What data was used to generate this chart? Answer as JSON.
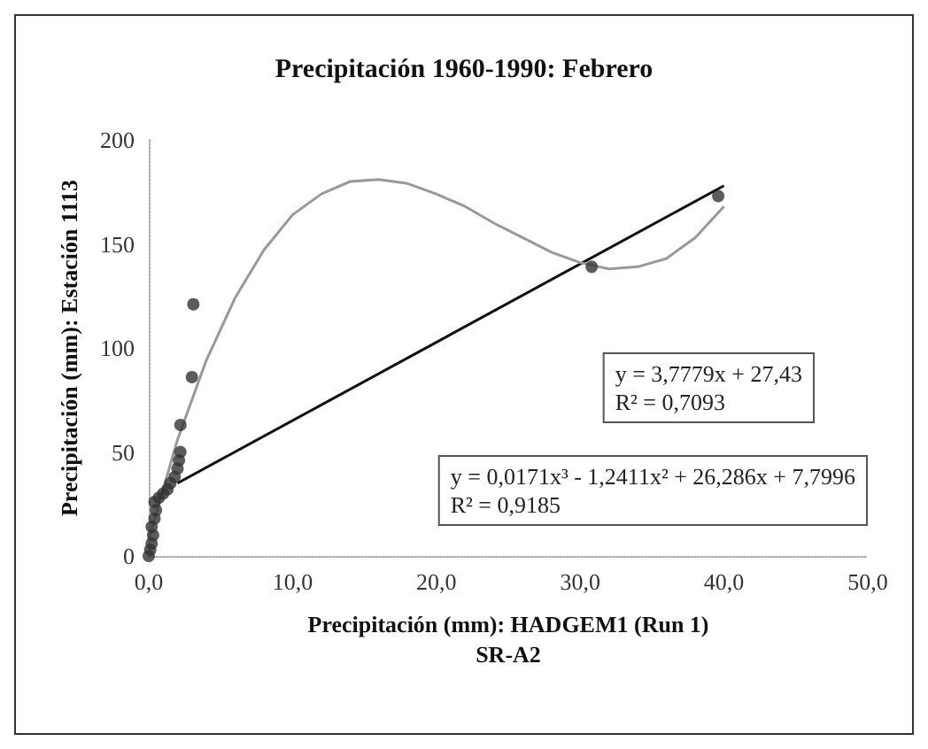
{
  "chart_data": {
    "type": "scatter",
    "title": "Precipitación 1960-1990: Febrero",
    "xlabel": "Precipitación (mm): HADGEM1 (Run 1)\nSR-A2",
    "ylabel": "Precipitación (mm): Estación 1113",
    "xlim": [
      0,
      50
    ],
    "xticks": [
      {
        "value": 0,
        "label": "0,0"
      },
      {
        "value": 10,
        "label": "10,0"
      },
      {
        "value": 20,
        "label": "20,0"
      },
      {
        "value": 30,
        "label": "30,0"
      },
      {
        "value": 40,
        "label": "40,0"
      },
      {
        "value": 50,
        "label": "50,0"
      }
    ],
    "ylim": [
      0,
      200
    ],
    "yticks": [
      0,
      50,
      100,
      150,
      200
    ],
    "grid": false,
    "series": [
      {
        "marker": "circle",
        "color": "#333333",
        "x": [
          0,
          0.1,
          0.2,
          0.3,
          0.2,
          0.4,
          0.5,
          0.4,
          0.7,
          1.0,
          1.3,
          1.5,
          1.8,
          2.0,
          2.1,
          2.2,
          2.2,
          3.0,
          3.1,
          30.8,
          39.6
        ],
        "values": [
          0,
          3,
          6,
          10,
          14,
          18,
          22,
          26,
          28,
          30,
          32,
          35,
          38,
          42,
          46,
          50,
          63,
          86,
          121,
          139,
          173
        ]
      },
      {
        "type": "line",
        "color": "#111111",
        "x": [
          2,
          40
        ],
        "values": [
          35,
          178
        ]
      },
      {
        "type": "line",
        "color": "#999999",
        "x": [
          0,
          2,
          4,
          6,
          8,
          10,
          12,
          14,
          16,
          18,
          20,
          22,
          24,
          26,
          28,
          30,
          32,
          34,
          36,
          38,
          40
        ],
        "values": [
          8,
          56,
          94,
          124,
          147,
          164,
          174,
          180,
          181,
          179,
          174,
          168,
          160,
          153,
          146,
          141,
          138,
          139,
          143,
          153,
          168
        ]
      }
    ],
    "annotations": [
      "y = 3,7779x + 27,43\nR² = 0,7093",
      "y = 0,0171x³ - 1,2411x² + 26,286x + 7,7996\nR² = 0,9185"
    ]
  }
}
